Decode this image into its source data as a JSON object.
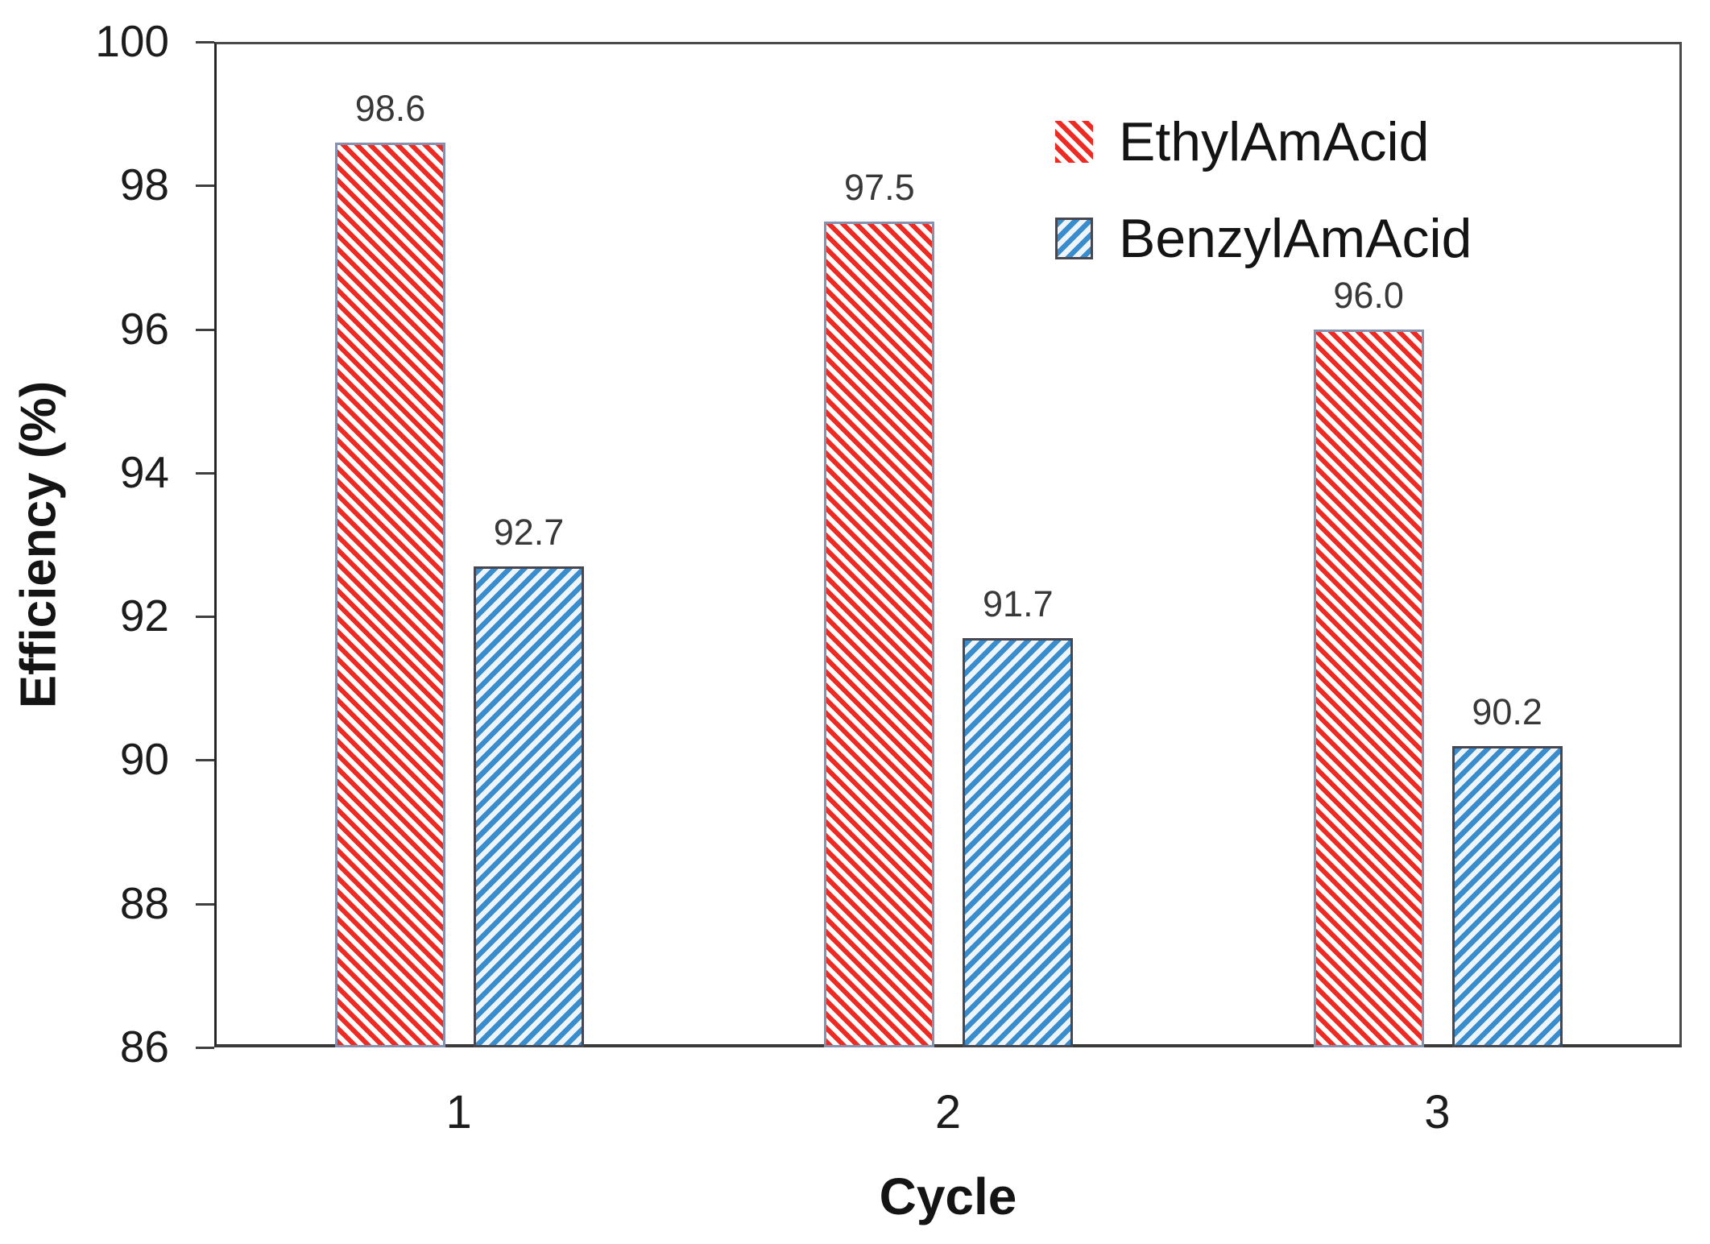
{
  "chart_data": {
    "type": "bar",
    "title": "",
    "xlabel": "Cycle",
    "ylabel": "Efficiency (%)",
    "categories": [
      "1",
      "2",
      "3"
    ],
    "series": [
      {
        "name": "EthylAmAcid",
        "values": [
          98.6,
          97.5,
          96.0
        ],
        "labels": [
          "98.6",
          "97.5",
          "96.0"
        ],
        "color": "#ee2a23",
        "hatch": "diagonal-down",
        "hatch_bg": "#ffffff",
        "border_color": "#8791ad"
      },
      {
        "name": "BenzylAmAcid",
        "values": [
          92.7,
          91.7,
          90.2
        ],
        "labels": [
          "92.7",
          "91.7",
          "90.2"
        ],
        "color": "#3a8dcc",
        "hatch": "diagonal-up",
        "hatch_bg": "#eef6fc",
        "border_color": "#474751"
      }
    ],
    "ylim": [
      86,
      100
    ],
    "yticks": [
      86,
      88,
      90,
      92,
      94,
      96,
      98,
      100
    ],
    "grid": false,
    "legend_position": "top-right",
    "bar_value_labels": true,
    "colors": {
      "axis": "#3f3f3f",
      "tick_text": "#1c1c1c",
      "value_text": "#383838",
      "title_text": "#141414"
    }
  }
}
